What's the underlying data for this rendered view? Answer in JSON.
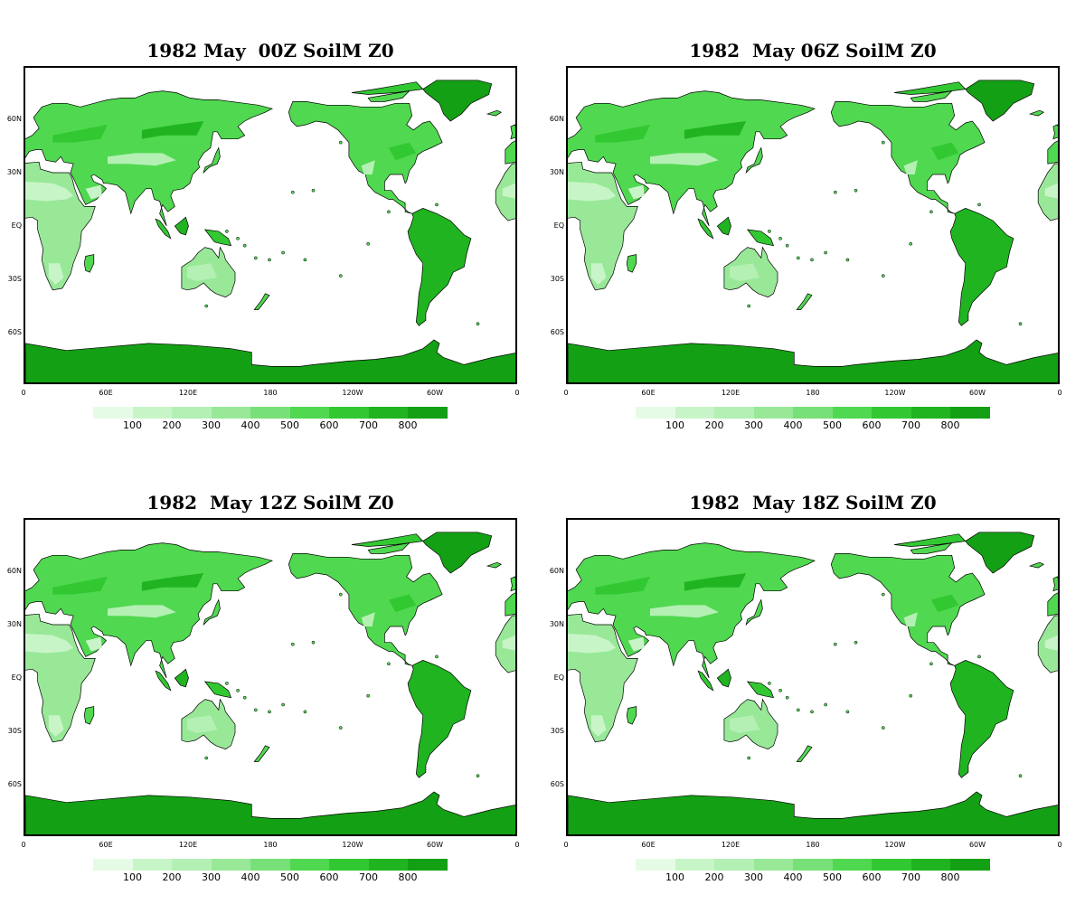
{
  "colorbar": {
    "colors": [
      "#e6fbe6",
      "#c8f5c8",
      "#b4f0b4",
      "#98e898",
      "#78e078",
      "#50d850",
      "#32c832",
      "#20b420",
      "#14a014"
    ],
    "labels": [
      "100",
      "200",
      "300",
      "400",
      "500",
      "600",
      "700",
      "800"
    ]
  },
  "axes": {
    "lat_labels": [
      "60N",
      "30N",
      "EQ",
      "30S",
      "60S"
    ],
    "lon_labels": [
      "0",
      "60E",
      "120E",
      "180",
      "120W",
      "60W",
      "0"
    ]
  },
  "panels": [
    {
      "title": "1982 May  00Z SoilM Z0"
    },
    {
      "title": "1982  May 06Z SoilM Z0"
    },
    {
      "title": "1982  May 12Z SoilM Z0"
    },
    {
      "title": "1982  May 18Z SoilM Z0"
    }
  ]
}
